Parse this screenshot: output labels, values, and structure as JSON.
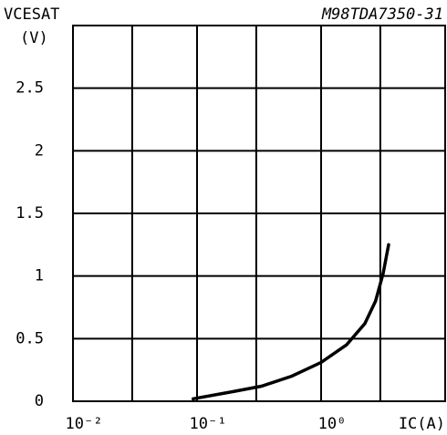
{
  "chart_data": {
    "type": "line",
    "y_label": "VCESAT",
    "y_unit": "(V)",
    "code": "M98TDA7350-31",
    "x_label": "IC(A)",
    "log_x": true,
    "xlim": [
      0.01,
      10
    ],
    "xticks": [
      {
        "value": 0.01,
        "label": "10⁻²"
      },
      {
        "value": 0.1,
        "label": "10⁻¹"
      },
      {
        "value": 1,
        "label": "10⁰"
      }
    ],
    "xgrid": [
      0.03,
      0.3,
      3,
      10
    ],
    "ylim": [
      0,
      3
    ],
    "yticks": [
      0,
      0.5,
      1,
      1.5,
      2,
      2.5
    ],
    "grid": true,
    "series": [
      {
        "color": "#000000",
        "x": [
          0.093,
          0.178,
          0.33,
          0.58,
          1.0,
          1.6,
          2.25,
          2.75,
          3.16,
          3.5
        ],
        "values": [
          0.02,
          0.07,
          0.12,
          0.2,
          0.31,
          0.45,
          0.62,
          0.8,
          1.02,
          1.25
        ]
      }
    ]
  }
}
